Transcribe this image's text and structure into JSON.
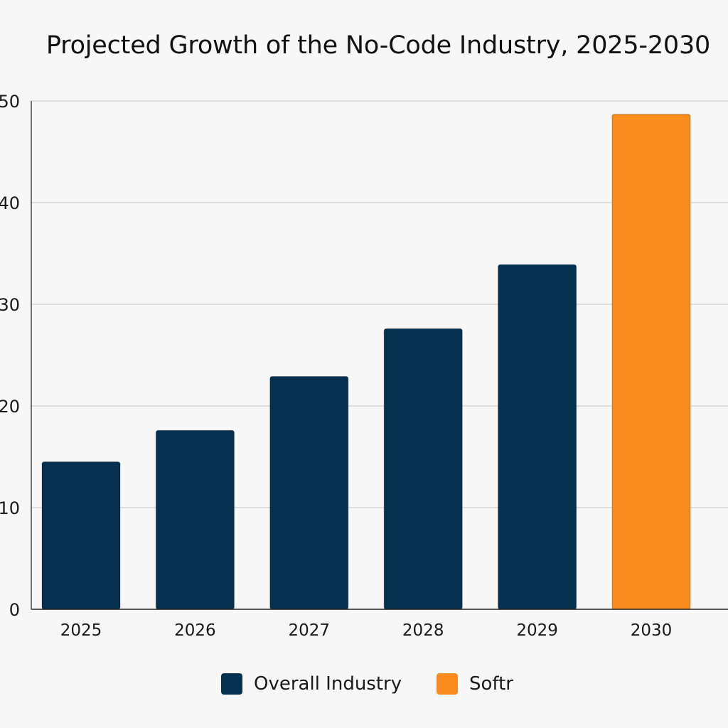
{
  "chart_data": {
    "type": "bar",
    "title": "Projected Growth of the No-Code Industry, 2025-2030",
    "xlabel": "",
    "ylabel": "",
    "categories": [
      "2025",
      "2026",
      "2027",
      "2028",
      "2029",
      "2030"
    ],
    "values": [
      14.5,
      17.6,
      22.9,
      27.6,
      33.9,
      48.7
    ],
    "series_index": [
      0,
      0,
      0,
      0,
      0,
      1
    ],
    "ylim": [
      0,
      50
    ],
    "yticks": [
      "0",
      "10",
      "20",
      "30",
      "40",
      "50"
    ],
    "grid": true,
    "legend_position": "bottom-center",
    "series": [
      {
        "name": "Overall Industry",
        "color": "#06304f"
      },
      {
        "name": "Softr",
        "color": "#fa8c1e"
      }
    ]
  }
}
